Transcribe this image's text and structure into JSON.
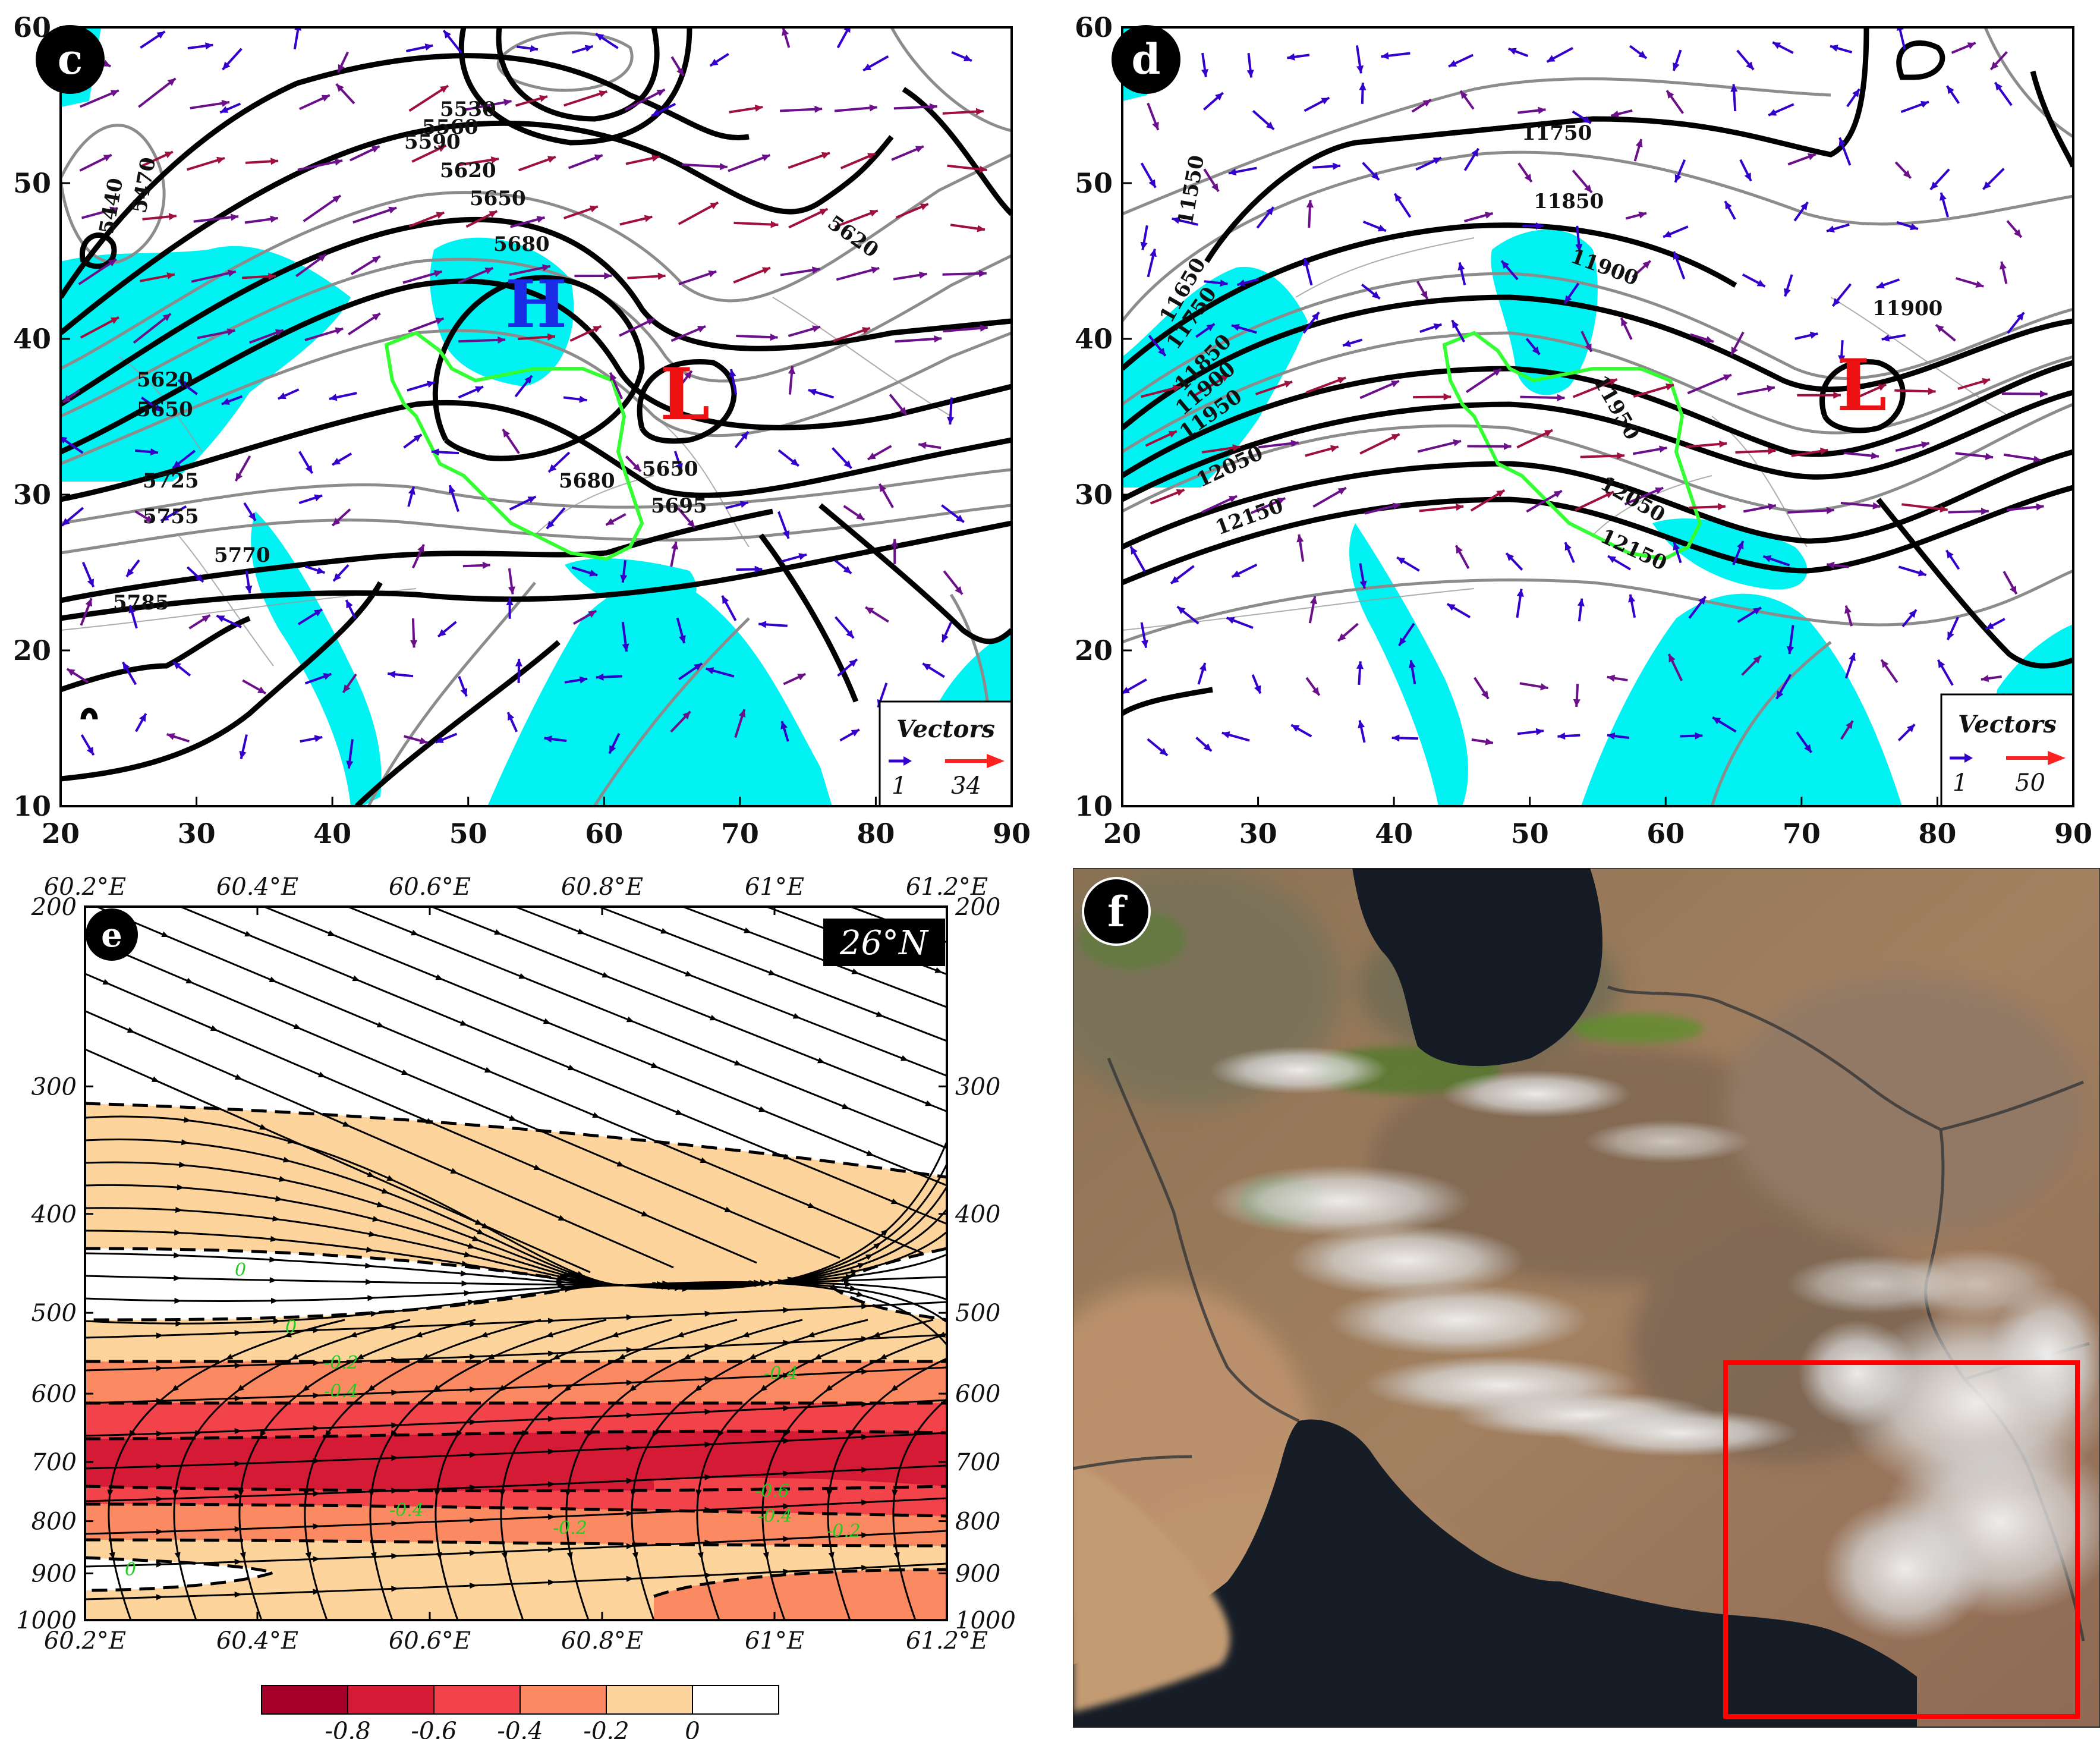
{
  "panels": {
    "c": {
      "label": "c",
      "x_ticks": [
        "20",
        "30",
        "40",
        "50",
        "60",
        "70",
        "80",
        "90"
      ],
      "y_ticks": [
        "10",
        "20",
        "30",
        "40",
        "50",
        "60"
      ],
      "high_label": "H",
      "low_label": "L",
      "contour_labels": [
        "5440",
        "5470",
        "5530",
        "5560",
        "5590",
        "5620",
        "5650",
        "5680",
        "5695",
        "5725",
        "5755",
        "5770",
        "5785",
        "5620",
        "5650",
        "5680",
        "5650",
        "5620"
      ],
      "vector_legend": {
        "title": "Vectors",
        "min": "1",
        "max": "34"
      }
    },
    "d": {
      "label": "d",
      "x_ticks": [
        "20",
        "30",
        "40",
        "50",
        "60",
        "70",
        "80",
        "90"
      ],
      "y_ticks": [
        "10",
        "20",
        "30",
        "40",
        "50",
        "60"
      ],
      "low_label": "L",
      "contour_labels": [
        "11550",
        "11650",
        "11750",
        "11850",
        "11900",
        "11950",
        "12050",
        "12150",
        "11750",
        "11850",
        "11900",
        "11900",
        "11950",
        "12050",
        "12150"
      ],
      "vector_legend": {
        "title": "Vectors",
        "min": "1",
        "max": "50"
      }
    },
    "e": {
      "label": "e",
      "latitude_tag": "26°N",
      "x_ticks": [
        "60.2°E",
        "60.4°E",
        "60.6°E",
        "60.8°E",
        "61°E",
        "61.2°E"
      ],
      "y_ticks": [
        "200",
        "300",
        "400",
        "500",
        "600",
        "700",
        "800",
        "900",
        "1000"
      ],
      "contour_labels": [
        "0",
        "0",
        "-0.2",
        "-0.4",
        "-0.4",
        "-0.2",
        "-0.4",
        "-0.6",
        "-0.4",
        "-0.2",
        "0"
      ],
      "colorbar": {
        "labels": [
          "-0.8",
          "-0.6",
          "-0.4",
          "-0.2",
          "0"
        ],
        "colors": [
          "#a6002a",
          "#d41a35",
          "#f2434a",
          "#fb8a62",
          "#fdd49b",
          "#ffffff"
        ]
      }
    },
    "f": {
      "label": "f"
    }
  },
  "colors": {
    "cyan_fill": "#00f2f2",
    "vector_blue": "#3300cc",
    "vector_purple": "#6b0f8a",
    "vector_red": "#a0103c",
    "legend_red": "#ff2020",
    "green_border": "#33ff33",
    "high_color": "#1a2ce6",
    "low_color": "#ee1111",
    "highlight_box": "#ff0000"
  }
}
